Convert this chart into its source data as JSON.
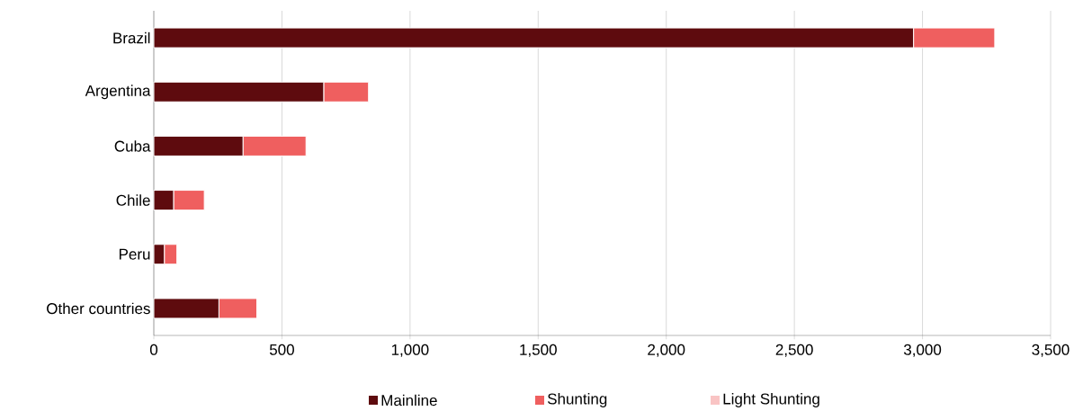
{
  "chart_data": {
    "type": "bar",
    "orientation": "horizontal",
    "stacked": true,
    "categories": [
      "Brazil",
      "Argentina",
      "Cuba",
      "Chile",
      "Peru",
      "Other countries"
    ],
    "series": [
      {
        "name": "Mainline",
        "color": "#5e0b0e",
        "values": [
          2965,
          663,
          348,
          77,
          41,
          254
        ]
      },
      {
        "name": "Shunting",
        "color": "#ef5f5f",
        "values": [
          317,
          175,
          246,
          120,
          49,
          148
        ]
      },
      {
        "name": "Light Shunting",
        "color": "#f9c4c4",
        "values": [
          null,
          null,
          null,
          null,
          null,
          null
        ]
      }
    ],
    "xlim": [
      0,
      3500
    ],
    "xticks": [
      0,
      {
        "value": 500,
        "label": "500"
      },
      {
        "value": 1000,
        "label": "1,000"
      },
      {
        "value": 1500,
        "label": "1,500"
      },
      {
        "value": 2000,
        "label": "2,000"
      },
      {
        "value": 2500,
        "label": "2,500"
      },
      {
        "value": 3000,
        "label": "3,000"
      },
      {
        "value": 3500,
        "label": "3,500"
      }
    ],
    "grid": "x",
    "legend": "bottom"
  }
}
